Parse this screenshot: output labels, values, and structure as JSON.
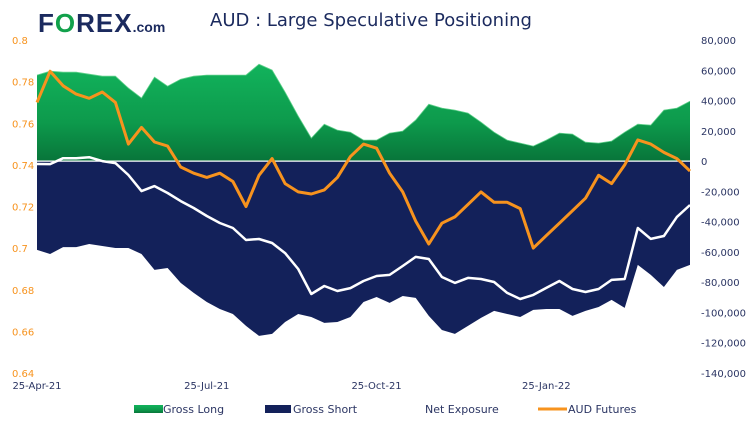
{
  "header": {
    "logo": "FOREX.com",
    "title": "AUD : Large Speculative Positioning"
  },
  "colors": {
    "gross_long": "#0fa552",
    "gross_short": "#13215a",
    "net_exposure": "#ffffff",
    "aud_futures": "#f7931e",
    "title": "#1b2a5e"
  },
  "chart_data": {
    "type": "area",
    "title": "AUD : Large Speculative Positioning",
    "x_tick_labels": [
      "25-Apr-21",
      "25-Jul-21",
      "25-Oct-21",
      "25-Jan-22"
    ],
    "x_frequency": "weekly",
    "y_left": {
      "min": 0.64,
      "max": 0.8,
      "ticks": [
        "0.8",
        "0.78",
        "0.76",
        "0.74",
        "0.72",
        "0.7",
        "0.68",
        "0.66",
        "0.64"
      ]
    },
    "y_right": {
      "min": -140000,
      "max": 80000,
      "ticks": [
        "80,000",
        "60,000",
        "40,000",
        "20,000",
        "0",
        "-20,000",
        "-40,000",
        "-60,000",
        "-80,000",
        "-100,000",
        "-120,000",
        "-140,000"
      ]
    },
    "legend_position": "bottom",
    "series": [
      {
        "name": "Gross Long",
        "axis": "right",
        "kind": "area",
        "values": [
          56800,
          59400,
          58700,
          58700,
          57400,
          56100,
          56100,
          48200,
          41600,
          55400,
          49500,
          54100,
          56100,
          56800,
          56800,
          56800,
          56800,
          64000,
          60100,
          45500,
          29700,
          15200,
          24400,
          20500,
          19100,
          13900,
          13900,
          18500,
          19800,
          27100,
          37600,
          35000,
          33700,
          31700,
          25700,
          19100,
          13900,
          11900,
          9900,
          13900,
          18500,
          17800,
          12500,
          11900,
          13200,
          19100,
          24400,
          23800,
          33700,
          35000,
          39600
        ]
      },
      {
        "name": "Gross Short",
        "axis": "right",
        "kind": "area",
        "values": [
          -58700,
          -61400,
          -56800,
          -56800,
          -54800,
          -56100,
          -57400,
          -57400,
          -61400,
          -71900,
          -70600,
          -80500,
          -87100,
          -93100,
          -97700,
          -101000,
          -108900,
          -115500,
          -114200,
          -106300,
          -101000,
          -103000,
          -106900,
          -106300,
          -103000,
          -93100,
          -89800,
          -93700,
          -89100,
          -90400,
          -102300,
          -111600,
          -114200,
          -108900,
          -103600,
          -99000,
          -101000,
          -103000,
          -98300,
          -97700,
          -97700,
          -102300,
          -99000,
          -96400,
          -91700,
          -97000,
          -68600,
          -75200,
          -83200,
          -71900,
          -68600
        ]
      },
      {
        "name": "Net Exposure",
        "axis": "right",
        "kind": "line",
        "values": [
          -1900,
          -2000,
          1900,
          1900,
          2600,
          0,
          -1300,
          -9200,
          -19800,
          -16500,
          -21100,
          -26400,
          -31000,
          -36300,
          -40900,
          -44200,
          -52100,
          -51500,
          -54100,
          -60800,
          -71300,
          -87800,
          -82500,
          -85800,
          -83900,
          -79200,
          -75900,
          -75200,
          -69300,
          -63300,
          -64700,
          -76600,
          -80500,
          -77200,
          -77900,
          -79900,
          -87100,
          -91100,
          -88400,
          -83800,
          -79200,
          -84500,
          -86500,
          -84500,
          -78500,
          -77900,
          -44200,
          -51400,
          -49500,
          -36900,
          -29000
        ]
      },
      {
        "name": "AUD Futures",
        "axis": "left",
        "kind": "line",
        "values": [
          0.77,
          0.785,
          0.778,
          0.774,
          0.772,
          0.775,
          0.77,
          0.75,
          0.758,
          0.751,
          0.749,
          0.739,
          0.736,
          0.734,
          0.736,
          0.732,
          0.72,
          0.735,
          0.743,
          0.731,
          0.727,
          0.726,
          0.728,
          0.734,
          0.744,
          0.75,
          0.748,
          0.736,
          0.727,
          0.713,
          0.702,
          0.712,
          0.715,
          0.721,
          0.727,
          0.722,
          0.722,
          0.719,
          0.7,
          0.706,
          0.712,
          0.718,
          0.724,
          0.735,
          0.731,
          0.74,
          0.752,
          0.75,
          0.746,
          0.743,
          0.737
        ]
      }
    ]
  }
}
